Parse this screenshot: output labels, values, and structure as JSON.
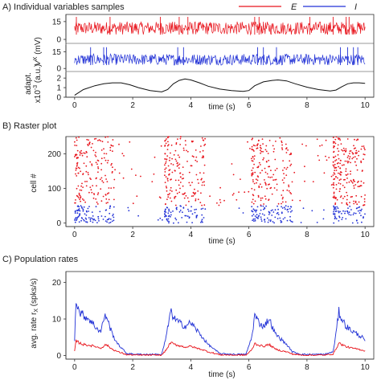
{
  "colors": {
    "E": "#e8141c",
    "I": "#2232d6",
    "adapt": "#111111"
  },
  "chart_data": [
    {
      "type": "line",
      "panel_label": "A) Individual variables samples",
      "legend": [
        {
          "name": "E",
          "color": "#e8141c"
        },
        {
          "name": "I",
          "color": "#2232d6"
        }
      ],
      "legend_placement": "top-right",
      "xlabel": "time (s)",
      "xlim": [
        -0.3,
        10.3
      ],
      "xticks": [
        "0",
        "2",
        "4",
        "6",
        "8",
        "10"
      ],
      "subplots": [
        {
          "name": "voltage-E",
          "ylabel": "",
          "ylim": [
            -2,
            21
          ],
          "yticks": [
            "0",
            "15"
          ],
          "baseline_range": [
            4,
            15
          ],
          "spike_peak": 19,
          "spike_times": [
            0.06,
            1.22,
            2.95,
            3.6,
            3.9,
            6.2,
            6.35,
            8.1,
            8.9,
            9.35,
            9.45
          ]
        },
        {
          "name": "voltage-I",
          "ylabel": "V^X (mV)",
          "ylim": [
            -2,
            21
          ],
          "yticks": [
            "0",
            "15"
          ],
          "baseline_range": [
            3,
            13
          ],
          "spike_peak": 19,
          "spike_times": [
            0.55,
            1.0,
            1.1,
            3.55,
            3.75,
            6.3,
            6.5,
            6.95,
            9.15,
            9.4,
            9.6,
            9.75
          ]
        },
        {
          "name": "adaptation",
          "ylabel": "adapt. x10^-3 (a.u.)",
          "ylim": [
            0,
            2.6
          ],
          "yticks": [
            "0",
            "1",
            "2"
          ],
          "x": [
            0,
            0.3,
            0.7,
            1.0,
            1.3,
            1.6,
            1.9,
            2.2,
            2.6,
            3.0,
            3.2,
            3.4,
            3.6,
            3.8,
            4.0,
            4.3,
            4.6,
            5.0,
            5.4,
            5.8,
            6.0,
            6.2,
            6.5,
            6.8,
            7.0,
            7.3,
            7.6,
            8.0,
            8.4,
            8.8,
            9.0,
            9.2,
            9.4,
            9.6,
            9.8,
            10.0
          ],
          "values": [
            0.2,
            0.8,
            1.2,
            1.4,
            1.5,
            1.5,
            1.3,
            1.0,
            0.7,
            0.55,
            0.8,
            1.4,
            1.75,
            1.9,
            1.8,
            1.5,
            1.15,
            0.85,
            0.7,
            0.6,
            0.7,
            1.2,
            1.6,
            1.75,
            1.8,
            1.7,
            1.4,
            1.05,
            0.8,
            0.65,
            0.75,
            1.1,
            1.4,
            1.5,
            1.5,
            1.45
          ]
        }
      ]
    },
    {
      "type": "scatter",
      "panel_label": "B) Raster plot",
      "xlabel": "time (s)",
      "ylabel": "cell #",
      "xlim": [
        -0.3,
        10.3
      ],
      "ylim": [
        -10,
        250
      ],
      "xticks": [
        "0",
        "2",
        "4",
        "6",
        "8",
        "10"
      ],
      "yticks": [
        "0",
        "100",
        "200"
      ],
      "populations": [
        {
          "name": "E",
          "cell_range": [
            51,
            250
          ],
          "color": "#e8141c"
        },
        {
          "name": "I",
          "cell_range": [
            0,
            50
          ],
          "color": "#2232d6"
        }
      ],
      "up_states": [
        [
          0.0,
          1.4
        ],
        [
          3.1,
          4.5
        ],
        [
          6.1,
          7.5
        ],
        [
          8.9,
          10.0
        ]
      ],
      "down_states": [
        [
          1.4,
          3.1
        ],
        [
          4.5,
          6.1
        ],
        [
          7.5,
          8.9
        ]
      ]
    },
    {
      "type": "line",
      "panel_label": "C) Population rates",
      "xlabel": "time (s)",
      "ylabel": "avg. rate r_X (spks/s)",
      "xlim": [
        -0.3,
        10.3
      ],
      "ylim": [
        -1,
        23
      ],
      "xticks": [
        "0",
        "2",
        "4",
        "6",
        "8",
        "10"
      ],
      "yticks": [
        "0",
        "10",
        "20"
      ],
      "x": [
        0,
        0.05,
        0.15,
        0.3,
        0.5,
        0.7,
        0.9,
        1.0,
        1.1,
        1.2,
        1.35,
        1.5,
        1.8,
        2.2,
        2.6,
        3.0,
        3.15,
        3.3,
        3.45,
        3.6,
        3.8,
        4.0,
        4.2,
        4.4,
        4.6,
        5.0,
        5.5,
        5.9,
        6.1,
        6.2,
        6.35,
        6.5,
        6.7,
        6.9,
        7.1,
        7.3,
        7.5,
        7.8,
        8.2,
        8.6,
        8.9,
        9.0,
        9.1,
        9.2,
        9.35,
        9.5,
        9.7,
        9.9,
        10.0
      ],
      "series": [
        {
          "name": "I",
          "color": "#2232d6",
          "values": [
            4,
            16,
            12,
            11,
            10,
            8,
            6.5,
            10,
            11,
            8,
            5,
            3,
            0.5,
            0.3,
            0.3,
            0.3,
            5,
            12,
            10,
            9,
            8,
            9,
            7,
            5,
            3,
            0.5,
            0.3,
            0.3,
            5,
            11,
            9,
            8,
            10,
            6,
            4.5,
            3,
            1,
            0.3,
            0.3,
            0.3,
            1,
            6,
            12,
            10,
            8,
            7,
            6,
            5,
            4
          ]
        },
        {
          "name": "E",
          "color": "#e8141c",
          "values": [
            1,
            4,
            3.5,
            3,
            2.8,
            2.5,
            2,
            2.6,
            3,
            2.2,
            1.5,
            1,
            0.2,
            0.1,
            0.1,
            0.1,
            1.5,
            3.5,
            3,
            2.7,
            2.3,
            2.5,
            2,
            1.6,
            1,
            0.2,
            0.1,
            0.1,
            1.5,
            3.3,
            2.8,
            2.5,
            3,
            1.8,
            1.3,
            1,
            0.4,
            0.1,
            0.1,
            0.1,
            0.4,
            1.8,
            3.4,
            3,
            2.4,
            2.1,
            1.8,
            1.5,
            1.2
          ]
        }
      ]
    }
  ]
}
